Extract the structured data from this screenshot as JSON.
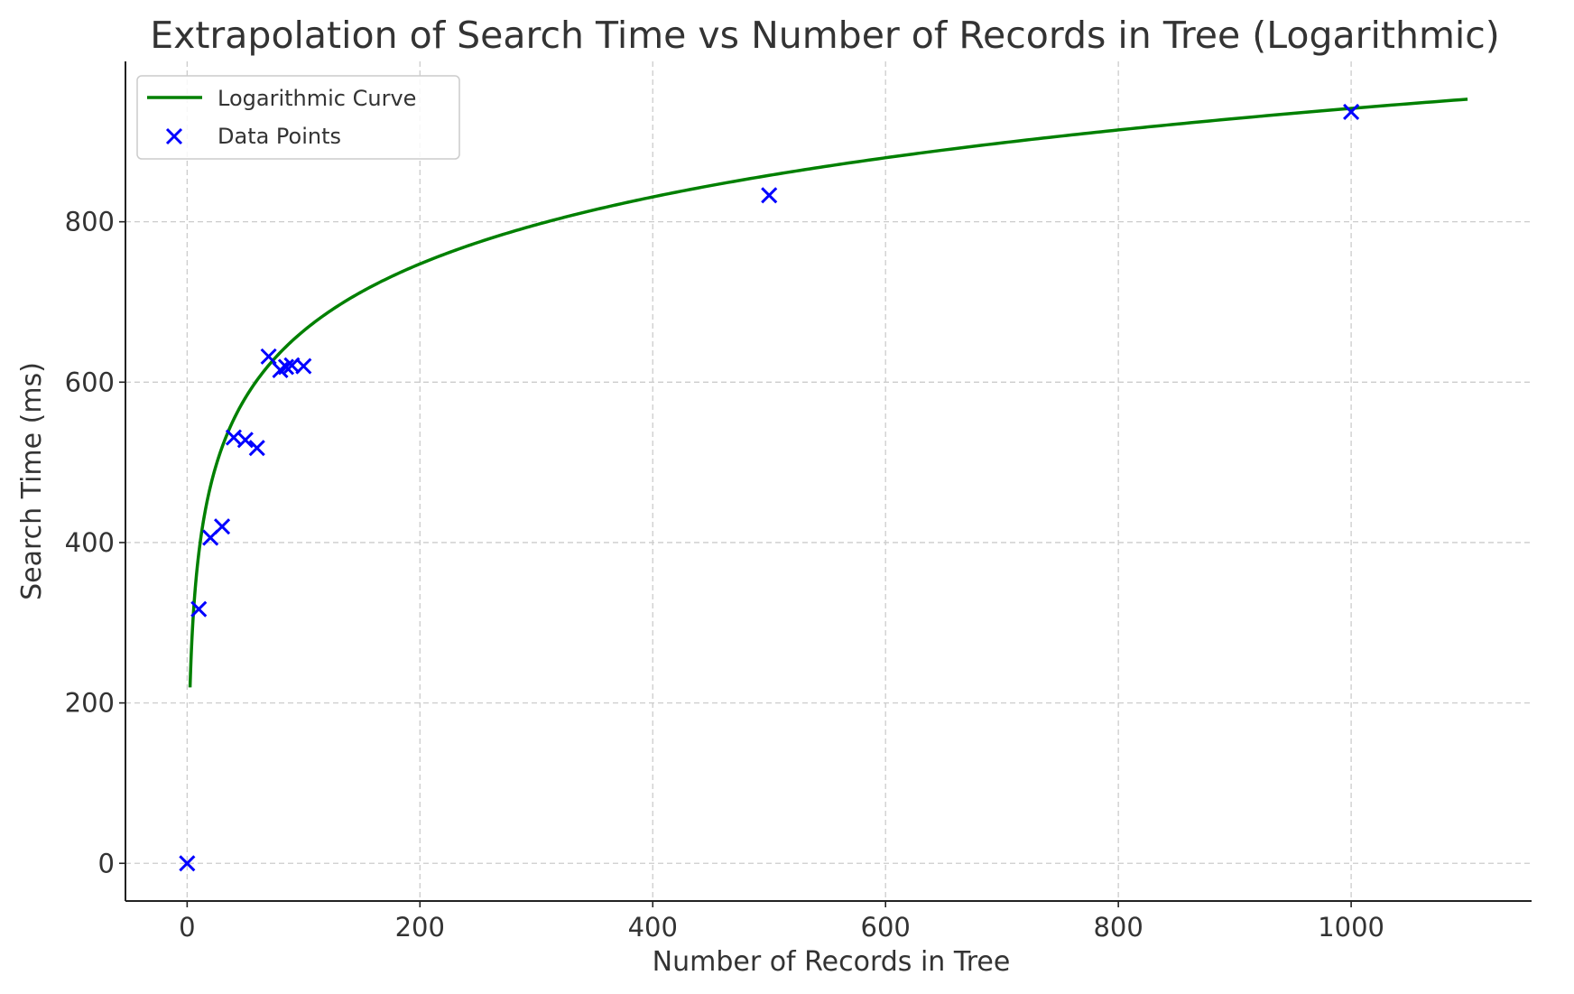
{
  "chart_data": {
    "type": "scatter",
    "title": "Extrapolation of Search Time vs Number of Records in Tree (Logarithmic)",
    "xlabel": "Number of Records in Tree",
    "ylabel": "Search Time (ms)",
    "xlim": [
      -53,
      1155
    ],
    "ylim": [
      -47,
      1000
    ],
    "xticks": [
      0,
      200,
      400,
      600,
      800,
      1000
    ],
    "yticks": [
      0,
      200,
      400,
      600,
      800
    ],
    "grid": true,
    "legend": {
      "placement": "top-left",
      "entries": [
        "Logarithmic Curve",
        "Data Points"
      ]
    },
    "colors": {
      "curve": "#008000",
      "points": "#0000ff",
      "grid": "#cccccc"
    },
    "series": [
      {
        "name": "Logarithmic Curve",
        "kind": "line",
        "model": "y = a * ln(x) + b",
        "a": 120.5,
        "b": 109,
        "x_range": [
          2.5,
          1100
        ]
      },
      {
        "name": "Data Points",
        "kind": "scatter",
        "marker": "x",
        "x": [
          0,
          10,
          20,
          30,
          40,
          50,
          60,
          70,
          80,
          85,
          90,
          100,
          500,
          1000
        ],
        "y": [
          0,
          317,
          406,
          420,
          531,
          528,
          518,
          632,
          615,
          619,
          621,
          620,
          833,
          937
        ]
      }
    ]
  }
}
